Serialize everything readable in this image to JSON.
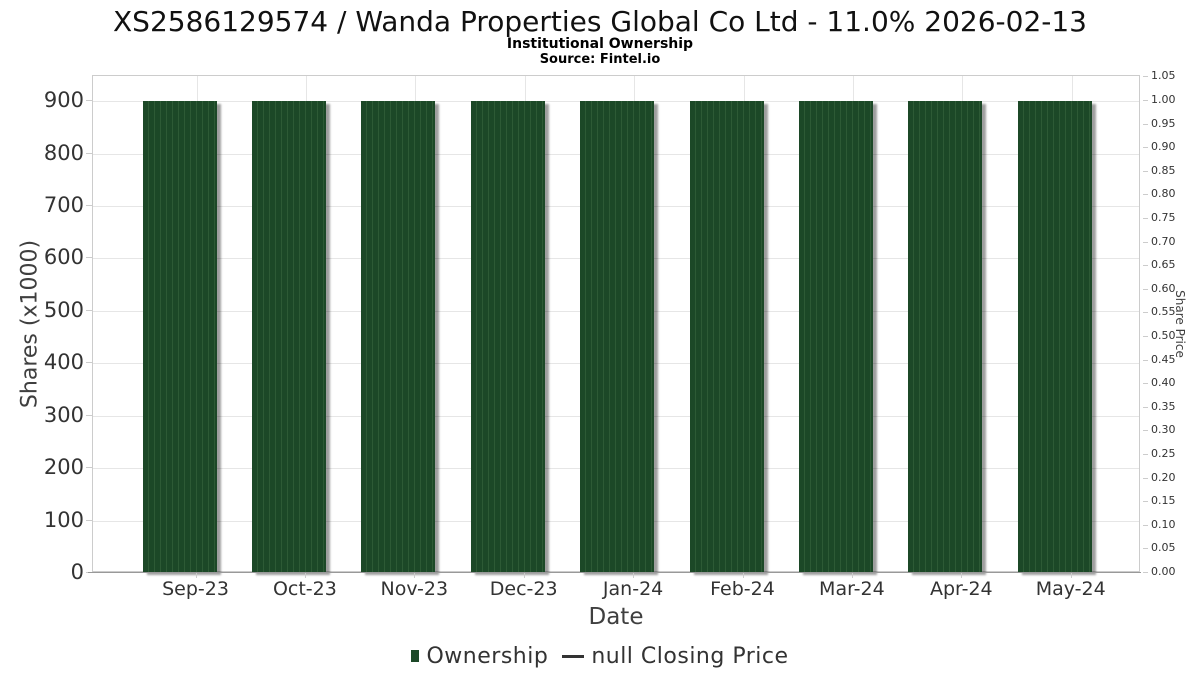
{
  "title": "XS2586129574 / Wanda Properties Global Co Ltd - 11.0% 2026-02-13",
  "subtitle": "Institutional Ownership",
  "source": "Source: Fintel.io",
  "chart_data": {
    "type": "bar",
    "categories": [
      "Sep-23",
      "Oct-23",
      "Nov-23",
      "Dec-23",
      "Jan-24",
      "Feb-24",
      "Mar-24",
      "Apr-24",
      "May-24"
    ],
    "series": [
      {
        "name": "Ownership",
        "type": "bar",
        "values": [
          900,
          900,
          900,
          900,
          900,
          900,
          900,
          900,
          900
        ],
        "color": "#1c4827"
      },
      {
        "name": "null Closing Price",
        "type": "line",
        "values": [],
        "color": "#333333"
      }
    ],
    "title": "Institutional Ownership",
    "xlabel": "Date",
    "ylabel_left": "Shares (x1000)",
    "ylabel_right": "Share Price",
    "y_left_ticks": [
      0,
      100,
      200,
      300,
      400,
      500,
      600,
      700,
      800,
      900
    ],
    "y_right_ticks": [
      "0.00",
      "0.05",
      "0.10",
      "0.15",
      "0.20",
      "0.25",
      "0.30",
      "0.35",
      "0.40",
      "0.45",
      "0.50",
      "0.55",
      "0.60",
      "0.65",
      "0.70",
      "0.75",
      "0.80",
      "0.85",
      "0.90",
      "0.95",
      "1.00",
      "1.05"
    ],
    "ylim_left": [
      0,
      948
    ],
    "ylim_right": [
      0,
      1.053
    ],
    "grid": true,
    "legend_position": "bottom"
  },
  "colors": {
    "bar": "#1c4827",
    "bar_stripe": "#2d5a35",
    "grid": "#e6e6e6",
    "plot_border": "#cccccc",
    "axis_line": "#999999",
    "tick_text": "#333333",
    "axis_title_text": "#3f3f3f"
  }
}
